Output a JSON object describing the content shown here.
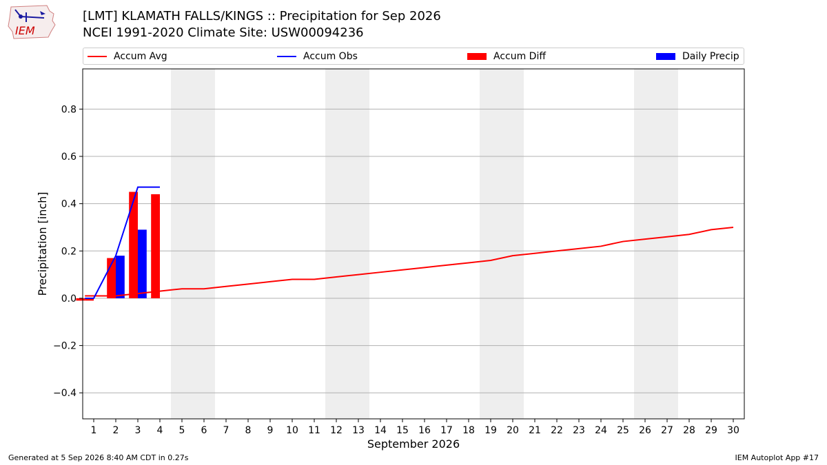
{
  "header": {
    "title_line1": "[LMT] KLAMATH FALLS/KINGS :: Precipitation for Sep 2026",
    "title_line2": "NCEI 1991-2020 Climate Site: USW00094236",
    "logo_text": "IEM"
  },
  "legend": {
    "items": [
      {
        "label": "Accum Avg",
        "kind": "line",
        "color": "#ff0000"
      },
      {
        "label": "Accum Obs",
        "kind": "line",
        "color": "#0000ff"
      },
      {
        "label": "Accum Diff",
        "kind": "box",
        "color": "#ff0000"
      },
      {
        "label": "Daily Precip",
        "kind": "box",
        "color": "#0000ff"
      }
    ]
  },
  "footer": {
    "left": "Generated at 5 Sep 2026 8:40 AM CDT in 0.27s",
    "right": "IEM Autoplot App #17"
  },
  "chart_data": {
    "type": "bar",
    "title": "[LMT] KLAMATH FALLS/KINGS :: Precipitation for Sep 2026",
    "xlabel": "September 2026",
    "ylabel": "Precipitation [inch]",
    "xlim": [
      0.5,
      30.5
    ],
    "ylim": [
      -0.51,
      0.97
    ],
    "x_ticks": [
      1,
      2,
      3,
      4,
      5,
      6,
      7,
      8,
      9,
      10,
      11,
      12,
      13,
      14,
      15,
      16,
      17,
      18,
      19,
      20,
      21,
      22,
      23,
      24,
      25,
      26,
      27,
      28,
      29,
      30
    ],
    "y_ticks": [
      -0.4,
      -0.2,
      0.0,
      0.2,
      0.4,
      0.6,
      0.8
    ],
    "y_tick_labels": [
      "−0.4",
      "−0.2",
      "0.0",
      "0.2",
      "0.4",
      "0.6",
      "0.8"
    ],
    "weekend_shading": [
      [
        5,
        6
      ],
      [
        12,
        13
      ],
      [
        19,
        20
      ],
      [
        26,
        27
      ]
    ],
    "grid": "y",
    "legend_position": "top",
    "series": [
      {
        "name": "Accum Avg",
        "type": "line",
        "color": "#ff0000",
        "x": [
          0.6,
          1,
          2,
          3,
          4,
          5,
          6,
          7,
          8,
          9,
          10,
          11,
          12,
          13,
          14,
          15,
          16,
          17,
          18,
          19,
          20,
          21,
          22,
          23,
          24,
          25,
          26,
          27,
          28,
          29,
          30
        ],
        "values": [
          0.01,
          0.01,
          0.01,
          0.02,
          0.03,
          0.04,
          0.04,
          0.05,
          0.06,
          0.07,
          0.08,
          0.08,
          0.09,
          0.1,
          0.11,
          0.12,
          0.13,
          0.14,
          0.15,
          0.16,
          0.18,
          0.19,
          0.2,
          0.21,
          0.22,
          0.24,
          0.25,
          0.26,
          0.27,
          0.29,
          0.3
        ]
      },
      {
        "name": "Accum Obs",
        "type": "line",
        "color": "#0000ff",
        "x": [
          0.6,
          1,
          2,
          3,
          4
        ],
        "values": [
          0.0,
          0.0,
          0.18,
          0.47,
          0.47
        ]
      },
      {
        "name": "Accum Diff",
        "type": "bar",
        "color": "#ff0000",
        "x": [
          0.6,
          1,
          2,
          3,
          4
        ],
        "values": [
          -0.01,
          -0.01,
          0.17,
          0.45,
          0.44
        ]
      },
      {
        "name": "Daily Precip",
        "type": "bar",
        "color": "#0000ff",
        "x": [
          2,
          3
        ],
        "values": [
          0.18,
          0.29
        ]
      }
    ]
  }
}
